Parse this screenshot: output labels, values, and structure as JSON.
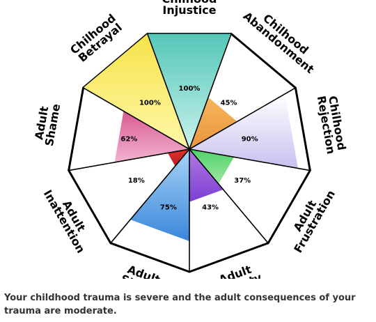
{
  "chart_data": {
    "type": "radial-sector",
    "max": 100,
    "categories": [
      {
        "label": [
          "Chilhood",
          "Injustice"
        ],
        "value": 100,
        "value_label": "100%",
        "color_top": "#54c7b8",
        "color_bottom": "#c9f2ec"
      },
      {
        "label": [
          "Chilhood",
          "Abandonment"
        ],
        "value": 45,
        "value_label": "45%",
        "color_top": "#f7b55c",
        "color_bottom": "#e8963d"
      },
      {
        "label": [
          "Chilhood",
          "Rejection"
        ],
        "value": 90,
        "value_label": "90%",
        "color_top": "#ffffff",
        "color_bottom": "#c8c0ef"
      },
      {
        "label": [
          "Adult",
          "Frustration"
        ],
        "value": 37,
        "value_label": "37%",
        "color_top": "#4fd36a",
        "color_bottom": "#9ee6a3"
      },
      {
        "label": [
          "Adult",
          "Anxiety"
        ],
        "value": 43,
        "value_label": "43%",
        "color_top": "#b47ae4",
        "color_bottom": "#7b3fd1"
      },
      {
        "label": [
          "Adult",
          "Stress"
        ],
        "value": 75,
        "value_label": "75%",
        "color_top": "#a8d4f5",
        "color_bottom": "#3a86dc"
      },
      {
        "label": [
          "Adult",
          "Inattention"
        ],
        "value": 18,
        "value_label": "18%",
        "color_top": "#e2302f",
        "color_bottom": "#b81e1e"
      },
      {
        "label": [
          "Adult",
          "Shame"
        ],
        "value": 62,
        "value_label": "62%",
        "color_top": "#d85a92",
        "color_bottom": "#f2b4d0"
      },
      {
        "label": [
          "Chilhood",
          "Betrayal"
        ],
        "value": 100,
        "value_label": "100%",
        "color_top": "#f7e34a",
        "color_bottom": "#fdf7a8"
      }
    ]
  },
  "summary": "Your childhood trauma is severe and the adult consequences of your trauma are moderate."
}
